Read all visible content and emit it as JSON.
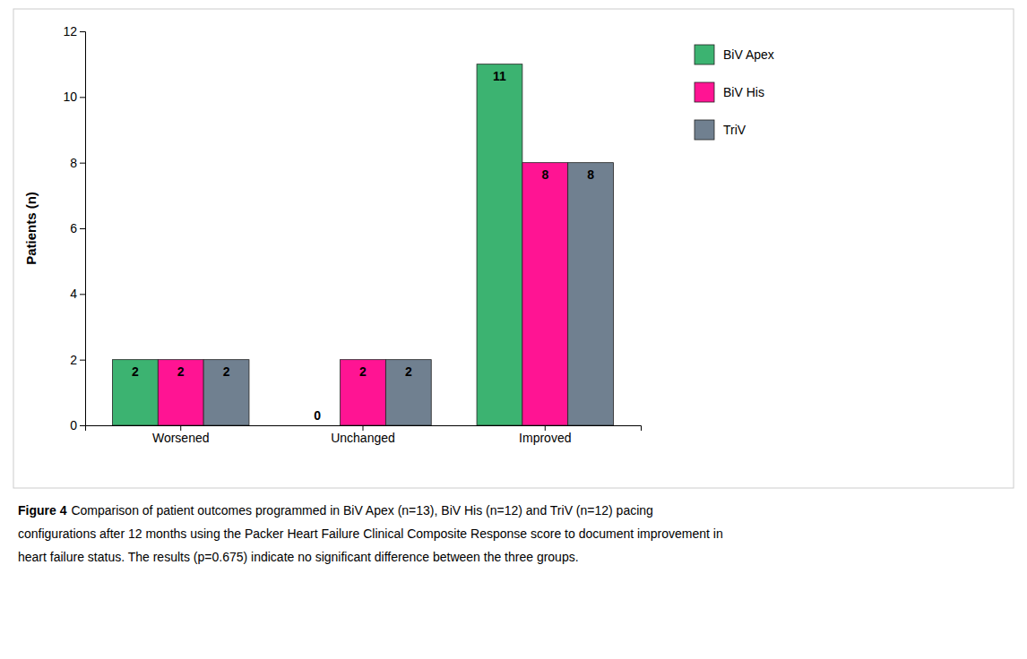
{
  "chart_data": {
    "type": "bar",
    "ylabel": "Patients (n)",
    "categories": [
      "Worsened",
      "Unchanged",
      "Improved"
    ],
    "series": [
      {
        "name": "BiV Apex",
        "color": "#3CB371",
        "values": [
          2,
          0,
          11
        ]
      },
      {
        "name": "BiV His",
        "color": "#FF1493",
        "values": [
          2,
          2,
          8
        ]
      },
      {
        "name": "TriV",
        "color": "#708090",
        "values": [
          2,
          2,
          8
        ]
      }
    ],
    "ylim": [
      0,
      12
    ],
    "yticks": [
      0,
      2,
      4,
      6,
      8,
      10,
      12
    ],
    "grid": false,
    "legend": "right",
    "data_labels": true,
    "annotations": [
      "Figure 4",
      "Comparison of patient outcomes programmed in BiV Apex (n=13), BiV His (n=12) and TriV (n=12) pacing",
      "configurations after 12 months using the Packer Heart Failure Clinical Composite Response score to document improvement in",
      "heart failure status. The results (p=0.675) indicate no significant difference between the three groups."
    ]
  }
}
